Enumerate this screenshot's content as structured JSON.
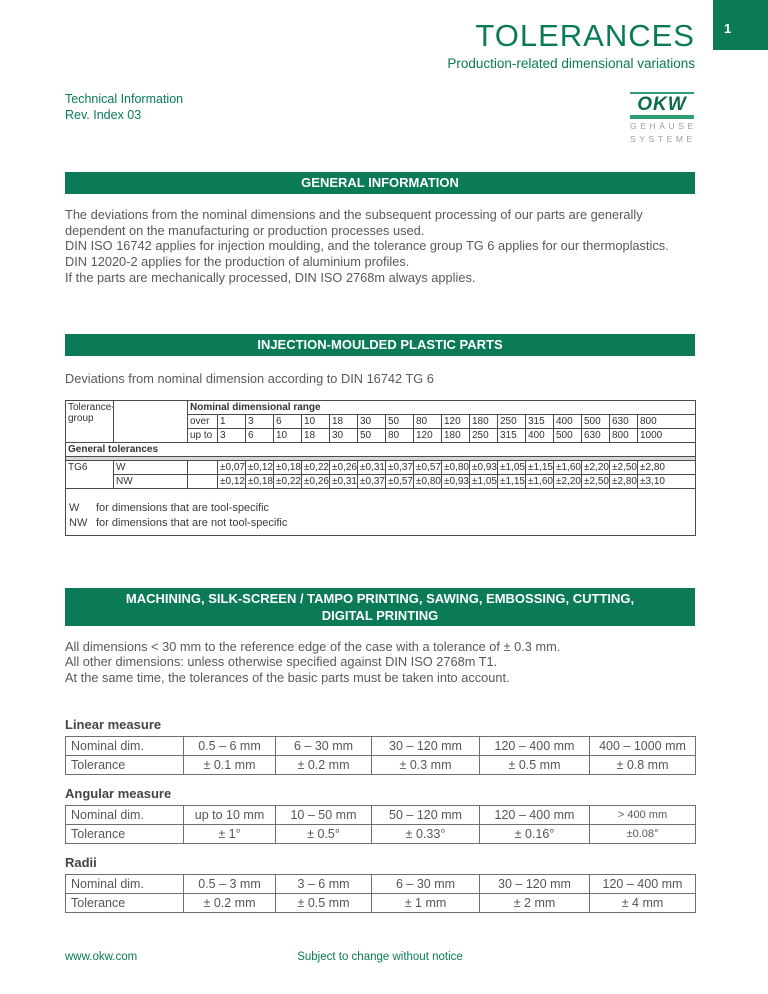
{
  "page": {
    "number": "1"
  },
  "colors": {
    "green": "#0a7a57",
    "body_text_gray": "#58595b"
  },
  "header": {
    "title": "TOLERANCES",
    "subtitle": "Production-related dimensional variations",
    "meta": "Technical Information\nRev. Index 03",
    "logo": {
      "name": "OKW",
      "line1": "GEHÄUSE",
      "line2": "SYSTEME"
    }
  },
  "sections": {
    "general": {
      "banner": "GENERAL INFORMATION",
      "body": "The deviations from the nominal dimensions and the subsequent processing of our parts are generally\ndependent on the manufacturing or production processes used.\nDIN ISO 16742 applies for injection moulding, and the tolerance group TG 6 applies for our thermoplastics.\nDIN 12020-2 applies for the production of aluminium profiles.\nIf the parts are mechanically processed, DIN ISO 2768m always applies."
    },
    "injection": {
      "banner": "INJECTION-MOULDED PLASTIC PARTS",
      "caption": "Deviations from nominal dimension according to DIN 16742 TG 6",
      "table": {
        "col1_header": "Tolerance-\ngroup",
        "range_header": "Nominal dimensional range",
        "over_label": "over",
        "upto_label": "up to",
        "over": [
          "1",
          "3",
          "6",
          "10",
          "18",
          "30",
          "50",
          "80",
          "120",
          "180",
          "250",
          "315",
          "400",
          "500",
          "630",
          "800"
        ],
        "upto": [
          "3",
          "6",
          "10",
          "18",
          "30",
          "50",
          "80",
          "120",
          "180",
          "250",
          "315",
          "400",
          "500",
          "630",
          "800",
          "1000"
        ],
        "section_label": "General tolerances",
        "group": "TG6",
        "rows": [
          {
            "label": "W",
            "values": [
              "±0,07",
              "±0,12",
              "±0,18",
              "±0,22",
              "±0,26",
              "±0,31",
              "±0,37",
              "±0,57",
              "±0,80",
              "±0,93",
              "±1,05",
              "±1,15",
              "±1,60",
              "±2,20",
              "±2,50",
              "±2,80"
            ]
          },
          {
            "label": "NW",
            "values": [
              "±0,12",
              "±0,18",
              "±0,22",
              "±0,26",
              "±0,31",
              "±0,37",
              "±0,57",
              "±0,80",
              "±0,93",
              "±1,05",
              "±1,15",
              "±1,60",
              "±2,20",
              "±2,50",
              "±2,80",
              "±3,10"
            ]
          }
        ],
        "footnotes": [
          {
            "key": "W",
            "text": "for dimensions that are tool-specific"
          },
          {
            "key": "NW",
            "text": "for dimensions that are not tool-specific"
          }
        ]
      }
    },
    "machining": {
      "banner_line1": "MACHINING, SILK-SCREEN / TAMPO PRINTING, SAWING, EMBOSSING, CUTTING,",
      "banner_line2": "DIGITAL PRINTING",
      "body": "All dimensions < 30 mm to the reference edge of the case with a tolerance of ± 0.3 mm.\nAll other dimensions: unless otherwise specified against DIN ISO 2768m T1.\nAt the same time, the tolerances of the basic parts must be taken into account."
    },
    "measures": [
      {
        "heading": "Linear measure",
        "header_row": [
          "Nominal dim.",
          "0.5 – 6 mm",
          "6 – 30 mm",
          "30 – 120 mm",
          "120 – 400 mm",
          "400 – 1000 mm"
        ],
        "value_row": [
          "Tolerance",
          "± 0.1 mm",
          "± 0.2 mm",
          "± 0.3 mm",
          "± 0.5 mm",
          "± 0.8 mm"
        ]
      },
      {
        "heading": "Angular measure",
        "header_row": [
          "Nominal dim.",
          "up to 10 mm",
          "10 – 50 mm",
          "50 – 120 mm",
          "120 – 400 mm",
          "> 400 mm"
        ],
        "value_row": [
          "Tolerance",
          "± 1°",
          "± 0.5°",
          "± 0.33°",
          "± 0.16°",
          "±0.08°"
        ]
      },
      {
        "heading": "Radii",
        "header_row": [
          "Nominal dim.",
          "0.5 – 3 mm",
          "3 – 6 mm",
          "6 – 30 mm",
          "30 – 120 mm",
          "120 – 400 mm"
        ],
        "value_row": [
          "Tolerance",
          "± 0.2 mm",
          "± 0.5 mm",
          "± 1 mm",
          "± 2 mm",
          "± 4 mm"
        ]
      }
    ]
  },
  "footer": {
    "left": "www.okw.com",
    "center": "Subject to change without notice"
  }
}
